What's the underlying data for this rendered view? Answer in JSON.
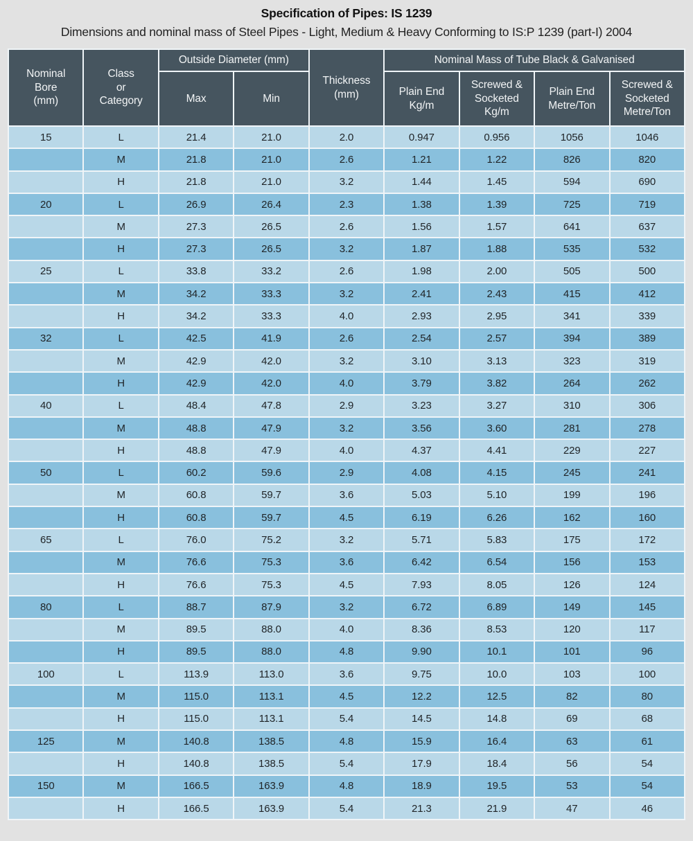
{
  "page": {
    "title": "Specification of Pipes: IS 1239",
    "subtitle": "Dimensions and nominal mass of Steel Pipes - Light, Medium & Heavy Conforming to IS:P 1239 (part-I) 2004"
  },
  "table": {
    "header": {
      "nominal_bore": "Nominal\nBore\n(mm)",
      "class_category": "Class\nor\nCategory",
      "outside_diameter": "Outside Diameter (mm)",
      "max": "Max",
      "min": "Min",
      "thickness": "Thickness\n(mm)",
      "nominal_mass": "Nominal Mass of Tube Black & Galvanised",
      "plain_end_kg": "Plain End\nKg/m",
      "screwed_socketed_kg": "Screwed &\nSocketed\nKg/m",
      "plain_end_mt": "Plain End\nMetre/Ton",
      "screwed_socketed_mt": "Screwed &\nSocketed\nMetre/Ton"
    },
    "columns": [
      "nominal-bore",
      "class",
      "od-max",
      "od-min",
      "thickness",
      "plain-end-kg-m",
      "screwed-socketed-kg-m",
      "plain-end-metre-ton",
      "screwed-socketed-metre-ton"
    ],
    "rows": [
      [
        "15",
        "L",
        "21.4",
        "21.0",
        "2.0",
        "0.947",
        "0.956",
        "1056",
        "1046"
      ],
      [
        "",
        "M",
        "21.8",
        "21.0",
        "2.6",
        "1.21",
        "1.22",
        "826",
        "820"
      ],
      [
        "",
        "H",
        "21.8",
        "21.0",
        "3.2",
        "1.44",
        "1.45",
        "594",
        "690"
      ],
      [
        "20",
        "L",
        "26.9",
        "26.4",
        "2.3",
        "1.38",
        "1.39",
        "725",
        "719"
      ],
      [
        "",
        "M",
        "27.3",
        "26.5",
        "2.6",
        "1.56",
        "1.57",
        "641",
        "637"
      ],
      [
        "",
        "H",
        "27.3",
        "26.5",
        "3.2",
        "1.87",
        "1.88",
        "535",
        "532"
      ],
      [
        "25",
        "L",
        "33.8",
        "33.2",
        "2.6",
        "1.98",
        "2.00",
        "505",
        "500"
      ],
      [
        "",
        "M",
        "34.2",
        "33.3",
        "3.2",
        "2.41",
        "2.43",
        "415",
        "412"
      ],
      [
        "",
        "H",
        "34.2",
        "33.3",
        "4.0",
        "2.93",
        "2.95",
        "341",
        "339"
      ],
      [
        "32",
        "L",
        "42.5",
        "41.9",
        "2.6",
        "2.54",
        "2.57",
        "394",
        "389"
      ],
      [
        "",
        "M",
        "42.9",
        "42.0",
        "3.2",
        "3.10",
        "3.13",
        "323",
        "319"
      ],
      [
        "",
        "H",
        "42.9",
        "42.0",
        "4.0",
        "3.79",
        "3.82",
        "264",
        "262"
      ],
      [
        "40",
        "L",
        "48.4",
        "47.8",
        "2.9",
        "3.23",
        "3.27",
        "310",
        "306"
      ],
      [
        "",
        "M",
        "48.8",
        "47.9",
        "3.2",
        "3.56",
        "3.60",
        "281",
        "278"
      ],
      [
        "",
        "H",
        "48.8",
        "47.9",
        "4.0",
        "4.37",
        "4.41",
        "229",
        "227"
      ],
      [
        "50",
        "L",
        "60.2",
        "59.6",
        "2.9",
        "4.08",
        "4.15",
        "245",
        "241"
      ],
      [
        "",
        "M",
        "60.8",
        "59.7",
        "3.6",
        "5.03",
        "5.10",
        "199",
        "196"
      ],
      [
        "",
        "H",
        "60.8",
        "59.7",
        "4.5",
        "6.19",
        "6.26",
        "162",
        "160"
      ],
      [
        "65",
        "L",
        "76.0",
        "75.2",
        "3.2",
        "5.71",
        "5.83",
        "175",
        "172"
      ],
      [
        "",
        "M",
        "76.6",
        "75.3",
        "3.6",
        "6.42",
        "6.54",
        "156",
        "153"
      ],
      [
        "",
        "H",
        "76.6",
        "75.3",
        "4.5",
        "7.93",
        "8.05",
        "126",
        "124"
      ],
      [
        "80",
        "L",
        "88.7",
        "87.9",
        "3.2",
        "6.72",
        "6.89",
        "149",
        "145"
      ],
      [
        "",
        "M",
        "89.5",
        "88.0",
        "4.0",
        "8.36",
        "8.53",
        "120",
        "117"
      ],
      [
        "",
        "H",
        "89.5",
        "88.0",
        "4.8",
        "9.90",
        "10.1",
        "101",
        "96"
      ],
      [
        "100",
        "L",
        "113.9",
        "113.0",
        "3.6",
        "9.75",
        "10.0",
        "103",
        "100"
      ],
      [
        "",
        "M",
        "115.0",
        "113.1",
        "4.5",
        "12.2",
        "12.5",
        "82",
        "80"
      ],
      [
        "",
        "H",
        "115.0",
        "113.1",
        "5.4",
        "14.5",
        "14.8",
        "69",
        "68"
      ],
      [
        "125",
        "M",
        "140.8",
        "138.5",
        "4.8",
        "15.9",
        "16.4",
        "63",
        "61"
      ],
      [
        "",
        "H",
        "140.8",
        "138.5",
        "5.4",
        "17.9",
        "18.4",
        "56",
        "54"
      ],
      [
        "150",
        "M",
        "166.5",
        "163.9",
        "4.8",
        "18.9",
        "19.5",
        "53",
        "54"
      ],
      [
        "",
        "H",
        "166.5",
        "163.9",
        "5.4",
        "21.3",
        "21.9",
        "47",
        "46"
      ]
    ]
  },
  "colors": {
    "page_background": "#e2e2e2",
    "header_background": "#46555f",
    "header_text": "#f2f4f5",
    "row_light": "#b9d8e8",
    "row_dark": "#89c0dd",
    "body_text": "#1f2326",
    "grid_line": "#f0f5f8"
  }
}
